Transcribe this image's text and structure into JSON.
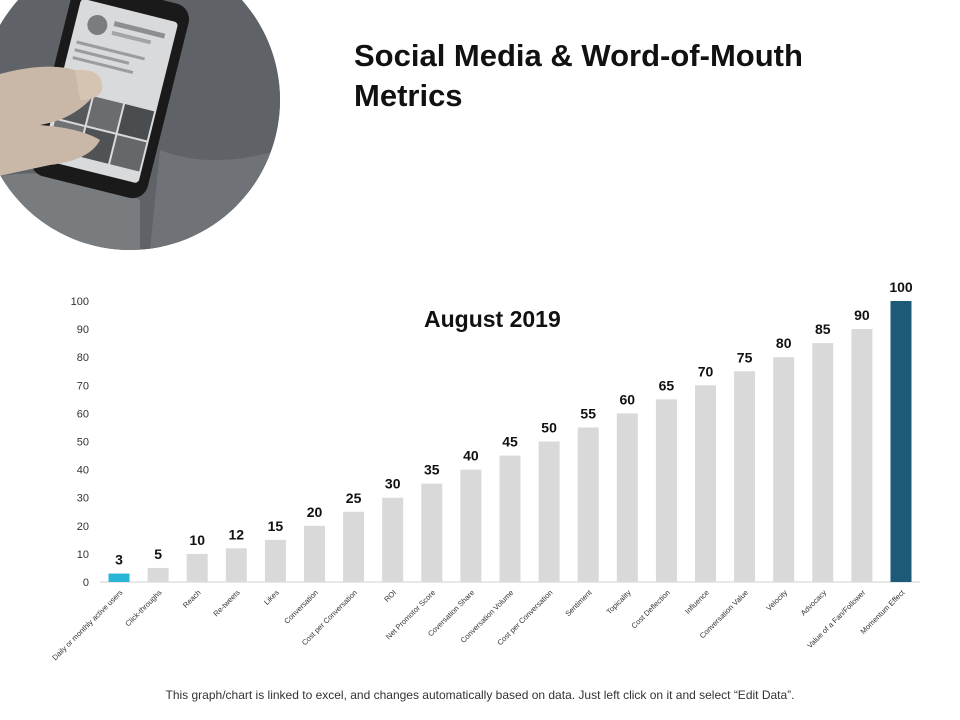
{
  "page": {
    "title": "Social Media & Word-of-Mouth Metrics",
    "footer": "This graph/chart is linked to excel, and changes automatically based on data. Just left click on it and select “Edit Data”."
  },
  "colors": {
    "default_bar": "#d9d9d9",
    "first_bar": "#29b5d6",
    "last_bar": "#1c5a78",
    "axis_text": "#333333",
    "label_text": "#111111"
  },
  "chart_data": {
    "type": "bar",
    "title": "August 2019",
    "xlabel": "",
    "ylabel": "",
    "ylim": [
      0,
      100
    ],
    "yticks": [
      0,
      10,
      20,
      30,
      40,
      50,
      60,
      70,
      80,
      90,
      100
    ],
    "grid": false,
    "categories": [
      "Daily or monthly active users",
      "Click-throughs",
      "Reach",
      "Re-tweets",
      "Likes",
      "Conversation",
      "Cost per Conversation",
      "ROI",
      "Net Promotor Score",
      "Coversation Share",
      "Conversation Volume",
      "Cost per Conversation",
      "Sentiment",
      "Topicality",
      "Cost Deflection",
      "Influence",
      "Conversation Value",
      "Velocity",
      "Advocacy",
      "Value of a Fan/Follower",
      "Momentum Effect"
    ],
    "values": [
      3,
      5,
      10,
      12,
      15,
      20,
      25,
      30,
      35,
      40,
      45,
      50,
      55,
      60,
      65,
      70,
      75,
      80,
      85,
      90,
      100
    ]
  }
}
